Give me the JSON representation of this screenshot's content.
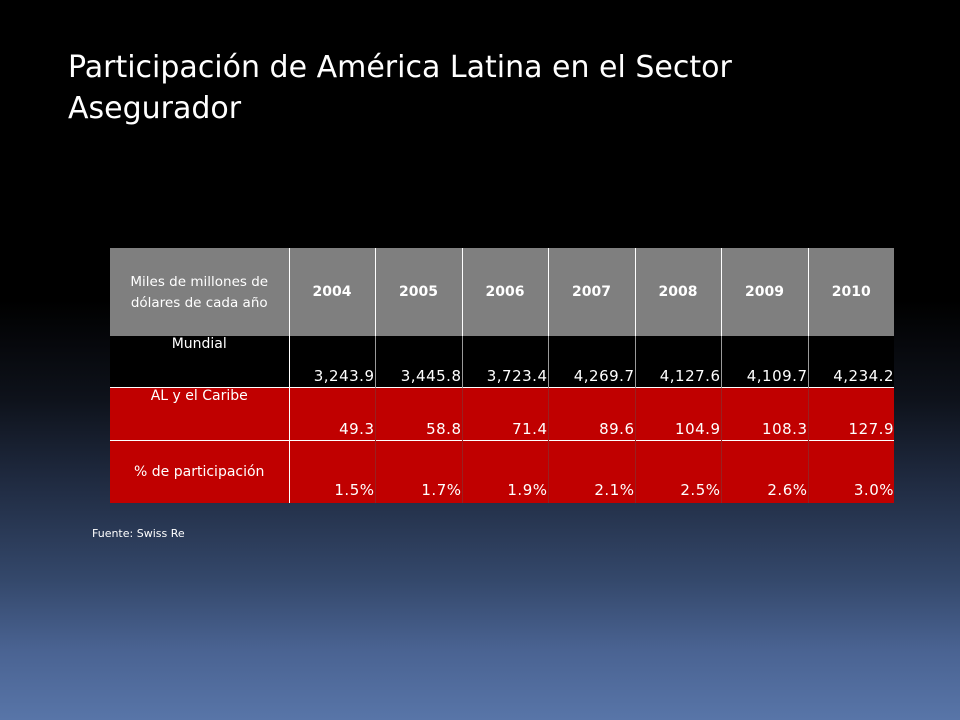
{
  "title": "Participación de América Latina en el Sector Asegurador",
  "table": {
    "header_label": "Miles de millones de dólares de cada año",
    "years": [
      "2004",
      "2005",
      "2006",
      "2007",
      "2008",
      "2009",
      "2010"
    ],
    "rows": [
      {
        "label": "Mundial",
        "values": [
          "3,243.9",
          "3,445.8",
          "3,723.4",
          "4,269.7",
          "4,127.6",
          "4,109.7",
          "4,234.2"
        ]
      },
      {
        "label": "AL y el Caribe",
        "values": [
          "49.3",
          "58.8",
          "71.4",
          "89.6",
          "104.9",
          "108.3",
          "127.9"
        ]
      },
      {
        "label": "% de participación",
        "values": [
          "1.5%",
          "1.7%",
          "1.9%",
          "2.1%",
          "2.5%",
          "2.6%",
          "3.0%"
        ]
      }
    ]
  },
  "source": "Fuente: Swiss Re",
  "colors": {
    "header_background": "#7f7f7f",
    "highlight_rows": "#c00000",
    "base_row": "#000000"
  }
}
